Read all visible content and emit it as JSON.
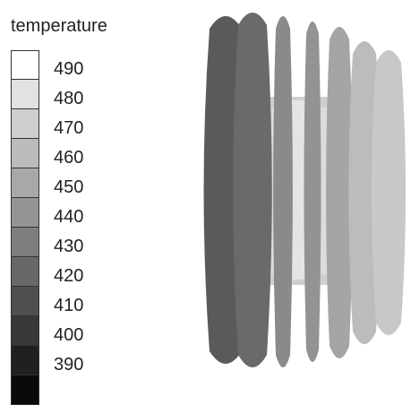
{
  "legend": {
    "title": "temperature",
    "labels": [
      "490",
      "480",
      "470",
      "460",
      "450",
      "440",
      "430",
      "420",
      "410",
      "400",
      "390"
    ],
    "swatch_colors": [
      "#ffffff",
      "#e2e2e2",
      "#cfcfcf",
      "#bbbbbb",
      "#a8a8a8",
      "#949494",
      "#7e7e7e",
      "#686868",
      "#4f4f4f",
      "#383838",
      "#202020",
      "#0a0a0a"
    ]
  },
  "render": {
    "fin_colors": [
      "#5a5a5a",
      "#6a6a6a",
      "#8a8a8a",
      "#939393",
      "#a5a5a5",
      "#bcbcbc",
      "#c8c8c8"
    ],
    "core_color": "#d9d9d9"
  }
}
